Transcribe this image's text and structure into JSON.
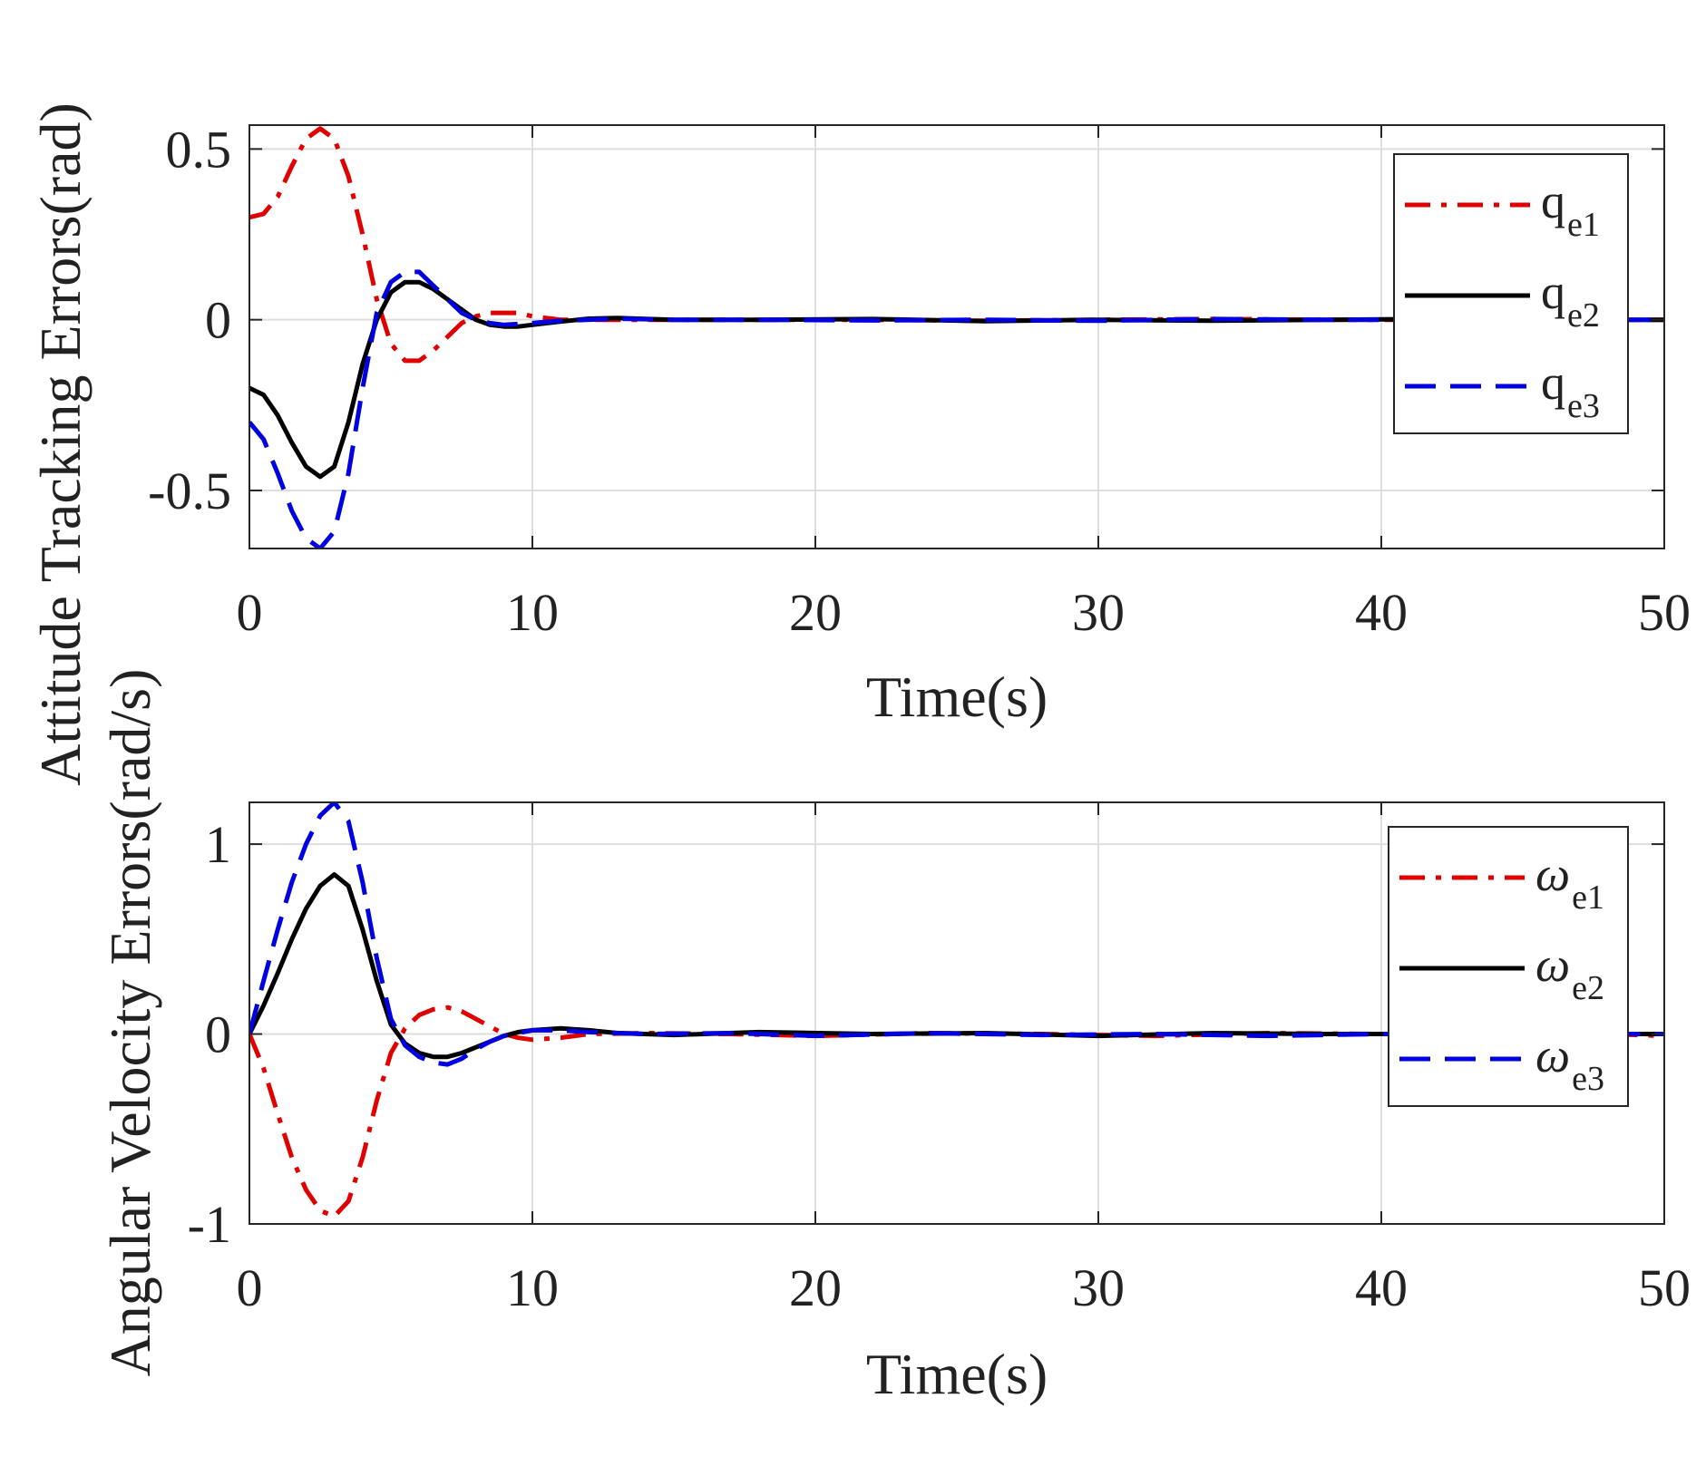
{
  "chart_data": [
    {
      "type": "line",
      "xlabel": "Time(s)",
      "ylabel": "Attitude Tracking Errors(rad)",
      "xlim": [
        0,
        50
      ],
      "ylim": [
        -0.67,
        0.57
      ],
      "xticks": [
        0,
        10,
        20,
        30,
        40,
        50
      ],
      "xtick_labels": [
        "0",
        "10",
        "20",
        "30",
        "40",
        "50"
      ],
      "yticks": [
        -0.5,
        0,
        0.5
      ],
      "ytick_labels": [
        "-0.5",
        "0",
        "0.5"
      ],
      "grid": true,
      "legend_position": "top-right",
      "series": [
        {
          "name": "q_e1",
          "symbol": "q",
          "subscript": "e1",
          "color": "#e00000",
          "style": "dash-dot",
          "points": [
            [
              0,
              0.3
            ],
            [
              0.5,
              0.31
            ],
            [
              1.0,
              0.36
            ],
            [
              1.5,
              0.45
            ],
            [
              2.0,
              0.53
            ],
            [
              2.5,
              0.56
            ],
            [
              3.0,
              0.53
            ],
            [
              3.5,
              0.42
            ],
            [
              4.0,
              0.25
            ],
            [
              4.5,
              0.06
            ],
            [
              5.0,
              -0.07
            ],
            [
              5.5,
              -0.12
            ],
            [
              6.0,
              -0.12
            ],
            [
              6.5,
              -0.09
            ],
            [
              7.0,
              -0.05
            ],
            [
              7.5,
              -0.01
            ],
            [
              8.0,
              0.01
            ],
            [
              8.5,
              0.02
            ],
            [
              9.0,
              0.02
            ],
            [
              9.5,
              0.02
            ],
            [
              10.0,
              0.01
            ],
            [
              11.0,
              0.0
            ],
            [
              13.0,
              0.0
            ],
            [
              15.0,
              0.0
            ],
            [
              18.0,
              0.0
            ],
            [
              22.0,
              0.0
            ],
            [
              26.0,
              -0.003
            ],
            [
              30.0,
              0.0
            ],
            [
              34.0,
              0.002
            ],
            [
              38.0,
              0.0
            ],
            [
              42.0,
              0.0
            ],
            [
              46.0,
              0.0
            ],
            [
              50.0,
              0.0
            ]
          ]
        },
        {
          "name": "q_e2",
          "symbol": "q",
          "subscript": "e2",
          "color": "#000000",
          "style": "solid",
          "points": [
            [
              0,
              -0.2
            ],
            [
              0.5,
              -0.22
            ],
            [
              1.0,
              -0.28
            ],
            [
              1.5,
              -0.36
            ],
            [
              2.0,
              -0.43
            ],
            [
              2.5,
              -0.46
            ],
            [
              3.0,
              -0.43
            ],
            [
              3.5,
              -0.3
            ],
            [
              4.0,
              -0.13
            ],
            [
              4.5,
              0.0
            ],
            [
              5.0,
              0.08
            ],
            [
              5.5,
              0.11
            ],
            [
              6.0,
              0.11
            ],
            [
              6.5,
              0.09
            ],
            [
              7.0,
              0.06
            ],
            [
              7.5,
              0.03
            ],
            [
              8.0,
              0.0
            ],
            [
              8.5,
              -0.015
            ],
            [
              9.0,
              -0.02
            ],
            [
              9.5,
              -0.02
            ],
            [
              10.0,
              -0.015
            ],
            [
              11.0,
              -0.005
            ],
            [
              12.0,
              0.003
            ],
            [
              13.0,
              0.005
            ],
            [
              15.0,
              0.0
            ],
            [
              18.0,
              0.0
            ],
            [
              22.0,
              0.002
            ],
            [
              26.0,
              -0.004
            ],
            [
              30.0,
              0.0
            ],
            [
              34.0,
              -0.003
            ],
            [
              38.0,
              0.0
            ],
            [
              42.0,
              0.002
            ],
            [
              46.0,
              0.0
            ],
            [
              50.0,
              0.0
            ]
          ]
        },
        {
          "name": "q_e3",
          "symbol": "q",
          "subscript": "e3",
          "color": "#0000e0",
          "style": "dashed",
          "points": [
            [
              0,
              -0.3
            ],
            [
              0.5,
              -0.35
            ],
            [
              1.0,
              -0.45
            ],
            [
              1.5,
              -0.56
            ],
            [
              2.0,
              -0.64
            ],
            [
              2.5,
              -0.67
            ],
            [
              3.0,
              -0.62
            ],
            [
              3.5,
              -0.45
            ],
            [
              4.0,
              -0.2
            ],
            [
              4.5,
              0.02
            ],
            [
              5.0,
              0.11
            ],
            [
              5.5,
              0.14
            ],
            [
              6.0,
              0.14
            ],
            [
              6.5,
              0.1
            ],
            [
              7.0,
              0.06
            ],
            [
              7.5,
              0.02
            ],
            [
              8.0,
              0.0
            ],
            [
              8.5,
              -0.01
            ],
            [
              9.0,
              -0.015
            ],
            [
              10.0,
              -0.01
            ],
            [
              11.0,
              -0.003
            ],
            [
              13.0,
              0.003
            ],
            [
              15.0,
              0.0
            ],
            [
              18.0,
              0.0
            ],
            [
              22.0,
              -0.002
            ],
            [
              26.0,
              0.0
            ],
            [
              30.0,
              -0.003
            ],
            [
              34.0,
              0.002
            ],
            [
              38.0,
              0.0
            ],
            [
              42.0,
              0.0
            ],
            [
              46.0,
              0.0
            ],
            [
              50.0,
              0.0
            ]
          ]
        }
      ]
    },
    {
      "type": "line",
      "xlabel": "Time(s)",
      "ylabel": "Angular Velocity Errors(rad/s)",
      "xlim": [
        0,
        50
      ],
      "ylim": [
        -1.0,
        1.22
      ],
      "xticks": [
        0,
        10,
        20,
        30,
        40,
        50
      ],
      "xtick_labels": [
        "0",
        "10",
        "20",
        "30",
        "40",
        "50"
      ],
      "yticks": [
        -1,
        0,
        1
      ],
      "ytick_labels": [
        "-1",
        "0",
        "1"
      ],
      "grid": true,
      "legend_position": "top-right",
      "series": [
        {
          "name": "ω_e1",
          "symbol": "ω",
          "subscript": "e1",
          "color": "#e00000",
          "style": "dash-dot",
          "points": [
            [
              0,
              0.0
            ],
            [
              0.5,
              -0.18
            ],
            [
              1.0,
              -0.42
            ],
            [
              1.5,
              -0.65
            ],
            [
              2.0,
              -0.82
            ],
            [
              2.5,
              -0.93
            ],
            [
              3.0,
              -0.96
            ],
            [
              3.5,
              -0.88
            ],
            [
              4.0,
              -0.65
            ],
            [
              4.5,
              -0.35
            ],
            [
              5.0,
              -0.1
            ],
            [
              5.5,
              0.03
            ],
            [
              6.0,
              0.1
            ],
            [
              6.5,
              0.13
            ],
            [
              7.0,
              0.14
            ],
            [
              7.5,
              0.12
            ],
            [
              8.0,
              0.08
            ],
            [
              8.5,
              0.04
            ],
            [
              9.0,
              0.0
            ],
            [
              9.5,
              -0.02
            ],
            [
              10.0,
              -0.03
            ],
            [
              11.0,
              -0.02
            ],
            [
              12.0,
              0.0
            ],
            [
              14.0,
              0.005
            ],
            [
              17.0,
              0.0
            ],
            [
              20.0,
              -0.01
            ],
            [
              24.0,
              0.005
            ],
            [
              28.0,
              0.0
            ],
            [
              32.0,
              -0.01
            ],
            [
              36.0,
              0.005
            ],
            [
              40.0,
              0.0
            ],
            [
              44.0,
              0.0
            ],
            [
              48.0,
              0.0
            ],
            [
              50.0,
              -0.01
            ]
          ]
        },
        {
          "name": "ω_e2",
          "symbol": "ω",
          "subscript": "e2",
          "color": "#000000",
          "style": "solid",
          "points": [
            [
              0,
              0.0
            ],
            [
              0.5,
              0.15
            ],
            [
              1.0,
              0.32
            ],
            [
              1.5,
              0.5
            ],
            [
              2.0,
              0.66
            ],
            [
              2.5,
              0.78
            ],
            [
              3.0,
              0.84
            ],
            [
              3.5,
              0.78
            ],
            [
              4.0,
              0.55
            ],
            [
              4.5,
              0.28
            ],
            [
              5.0,
              0.05
            ],
            [
              5.5,
              -0.05
            ],
            [
              6.0,
              -0.1
            ],
            [
              6.5,
              -0.12
            ],
            [
              7.0,
              -0.12
            ],
            [
              7.5,
              -0.1
            ],
            [
              8.0,
              -0.07
            ],
            [
              8.5,
              -0.04
            ],
            [
              9.0,
              -0.01
            ],
            [
              9.5,
              0.01
            ],
            [
              10.0,
              0.02
            ],
            [
              11.0,
              0.03
            ],
            [
              12.0,
              0.02
            ],
            [
              13.0,
              0.005
            ],
            [
              15.0,
              -0.005
            ],
            [
              18.0,
              0.01
            ],
            [
              22.0,
              0.0
            ],
            [
              26.0,
              0.005
            ],
            [
              30.0,
              -0.01
            ],
            [
              34.0,
              0.005
            ],
            [
              38.0,
              0.0
            ],
            [
              42.0,
              0.0
            ],
            [
              46.0,
              0.0
            ],
            [
              50.0,
              0.0
            ]
          ]
        },
        {
          "name": "ω_e3",
          "symbol": "ω",
          "subscript": "e3",
          "color": "#0000e0",
          "style": "dashed",
          "points": [
            [
              0,
              0.0
            ],
            [
              0.5,
              0.28
            ],
            [
              1.0,
              0.55
            ],
            [
              1.5,
              0.8
            ],
            [
              2.0,
              1.0
            ],
            [
              2.5,
              1.15
            ],
            [
              3.0,
              1.22
            ],
            [
              3.5,
              1.12
            ],
            [
              4.0,
              0.8
            ],
            [
              4.5,
              0.4
            ],
            [
              5.0,
              0.08
            ],
            [
              5.5,
              -0.06
            ],
            [
              6.0,
              -0.12
            ],
            [
              6.5,
              -0.15
            ],
            [
              7.0,
              -0.16
            ],
            [
              7.5,
              -0.13
            ],
            [
              8.0,
              -0.08
            ],
            [
              8.5,
              -0.04
            ],
            [
              9.0,
              -0.01
            ],
            [
              10.0,
              0.02
            ],
            [
              11.0,
              0.02
            ],
            [
              12.0,
              0.01
            ],
            [
              14.0,
              0.0
            ],
            [
              17.0,
              0.005
            ],
            [
              20.0,
              -0.01
            ],
            [
              24.0,
              0.005
            ],
            [
              28.0,
              -0.005
            ],
            [
              32.0,
              0.0
            ],
            [
              36.0,
              -0.01
            ],
            [
              40.0,
              0.0
            ],
            [
              44.0,
              0.0
            ],
            [
              48.0,
              0.0
            ],
            [
              50.0,
              0.0
            ]
          ]
        }
      ]
    }
  ]
}
